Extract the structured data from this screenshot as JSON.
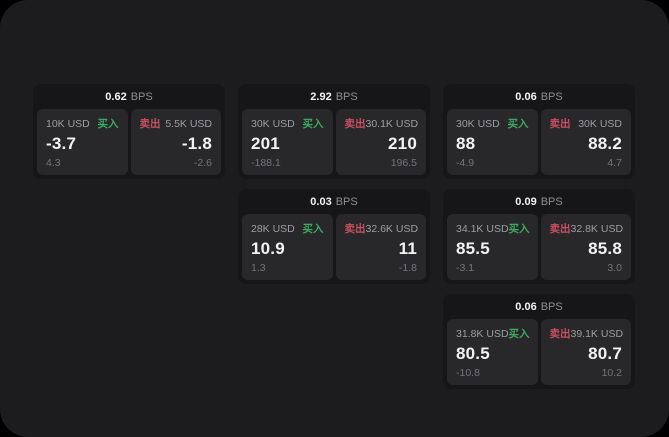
{
  "labels": {
    "buy": "买入",
    "sell": "卖出",
    "bps_suffix": "BPS"
  },
  "colors": {
    "page_bg": "#000000",
    "panel_bg": "#1c1c1e",
    "card_bg": "#161618",
    "cell_bg": "#28282a",
    "text_primary": "#f2f2f3",
    "text_secondary": "#9d9ea2",
    "text_header": "#8e8f93",
    "text_muted": "#74757a",
    "buy_green": "#3ea95e",
    "sell_red": "#c9505f"
  },
  "cards": [
    {
      "bps": "0.62",
      "buy": {
        "amount": "10K USD",
        "price": "-3.7",
        "delta": "4.3"
      },
      "sell": {
        "amount": "5.5K USD",
        "price": "-1.8",
        "delta": "-2.6"
      }
    },
    {
      "bps": "2.92",
      "buy": {
        "amount": "30K USD",
        "price": "201",
        "delta": "-188.1"
      },
      "sell": {
        "amount": "30.1K USD",
        "price": "210",
        "delta": "196.5"
      }
    },
    {
      "bps": "0.06",
      "buy": {
        "amount": "30K USD",
        "price": "88",
        "delta": "-4.9"
      },
      "sell": {
        "amount": "30K USD",
        "price": "88.2",
        "delta": "4.7"
      }
    },
    {
      "bps": "0.03",
      "buy": {
        "amount": "28K USD",
        "price": "10.9",
        "delta": "1.3"
      },
      "sell": {
        "amount": "32.6K USD",
        "price": "11",
        "delta": "-1.8"
      }
    },
    {
      "bps": "0.09",
      "buy": {
        "amount": "34.1K USD",
        "price": "85.5",
        "delta": "-3.1"
      },
      "sell": {
        "amount": "32.8K USD",
        "price": "85.8",
        "delta": "3.0"
      }
    },
    {
      "bps": "0.06",
      "buy": {
        "amount": "31.8K USD",
        "price": "80.5",
        "delta": "-10.8"
      },
      "sell": {
        "amount": "39.1K USD",
        "price": "80.7",
        "delta": "10.2"
      }
    }
  ]
}
